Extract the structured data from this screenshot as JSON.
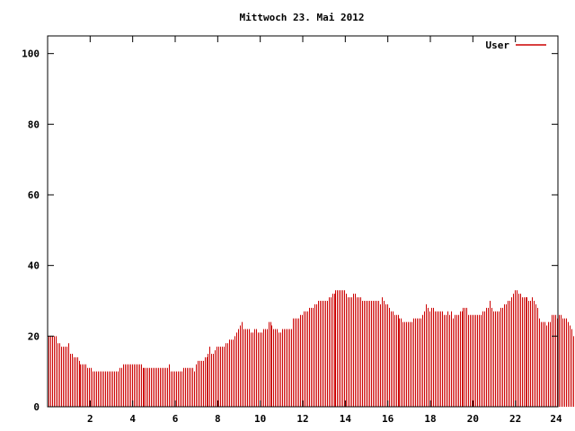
{
  "chart_data": {
    "type": "bar",
    "title": "Mittwoch 23. Mai 2012",
    "xlabel": "",
    "ylabel": "",
    "xlim": [
      0,
      24
    ],
    "ylim": [
      0,
      105
    ],
    "x_ticks": [
      2,
      4,
      6,
      8,
      10,
      12,
      14,
      16,
      18,
      20,
      22,
      24
    ],
    "y_ticks": [
      0,
      20,
      40,
      60,
      80,
      100
    ],
    "grid": false,
    "legend": "top-right",
    "bar_color": "#cc0000",
    "bar_interval_minutes": 5,
    "series": [
      {
        "name": "User",
        "color": "#cc0000",
        "values": [
          20,
          20,
          20,
          20,
          20,
          18,
          18,
          17,
          17,
          17,
          17,
          18,
          15,
          15,
          14,
          14,
          14,
          13,
          12,
          12,
          12,
          12,
          11,
          11,
          11,
          10,
          10,
          10,
          10,
          10,
          10,
          10,
          10,
          10,
          10,
          10,
          10,
          10,
          10,
          10,
          11,
          11,
          12,
          12,
          12,
          12,
          12,
          12,
          12,
          12,
          12,
          12,
          12,
          11,
          11,
          11,
          11,
          11,
          11,
          11,
          11,
          11,
          11,
          11,
          11,
          11,
          11,
          11,
          12,
          10,
          10,
          10,
          10,
          10,
          10,
          10,
          11,
          11,
          11,
          11,
          11,
          11,
          10,
          12,
          13,
          13,
          13,
          13,
          14,
          14,
          15,
          17,
          15,
          15,
          16,
          17,
          17,
          17,
          17,
          17,
          18,
          18,
          19,
          19,
          19,
          20,
          21,
          22,
          23,
          24,
          22,
          22,
          22,
          22,
          21,
          21,
          22,
          22,
          21,
          21,
          21,
          22,
          22,
          22,
          24,
          24,
          23,
          22,
          22,
          22,
          21,
          21,
          22,
          22,
          22,
          22,
          22,
          22,
          25,
          25,
          25,
          25,
          26,
          26,
          27,
          27,
          27,
          28,
          28,
          28,
          29,
          29,
          30,
          30,
          30,
          30,
          30,
          30,
          31,
          31,
          32,
          32,
          33,
          33,
          33,
          33,
          33,
          33,
          32,
          31,
          31,
          31,
          32,
          32,
          31,
          31,
          31,
          30,
          30,
          30,
          30,
          30,
          30,
          30,
          30,
          30,
          30,
          29,
          31,
          30,
          29,
          29,
          28,
          27,
          27,
          26,
          26,
          26,
          25,
          25,
          24,
          24,
          24,
          24,
          24,
          24,
          25,
          25,
          25,
          25,
          25,
          26,
          27,
          29,
          28,
          27,
          28,
          28,
          27,
          27,
          27,
          27,
          27,
          26,
          26,
          27,
          26,
          27,
          25,
          26,
          26,
          26,
          27,
          27,
          28,
          28,
          28,
          26,
          26,
          26,
          26,
          26,
          26,
          26,
          26,
          27,
          27,
          28,
          28,
          30,
          28,
          27,
          27,
          27,
          27,
          28,
          28,
          29,
          29,
          30,
          30,
          31,
          32,
          33,
          33,
          32,
          32,
          31,
          31,
          31,
          31,
          30,
          30,
          31,
          30,
          29,
          28,
          25,
          24,
          24,
          24,
          23,
          24,
          24,
          26,
          26,
          26,
          25,
          26,
          26,
          25,
          25,
          25,
          24,
          23,
          22,
          20,
          18
        ]
      }
    ]
  }
}
